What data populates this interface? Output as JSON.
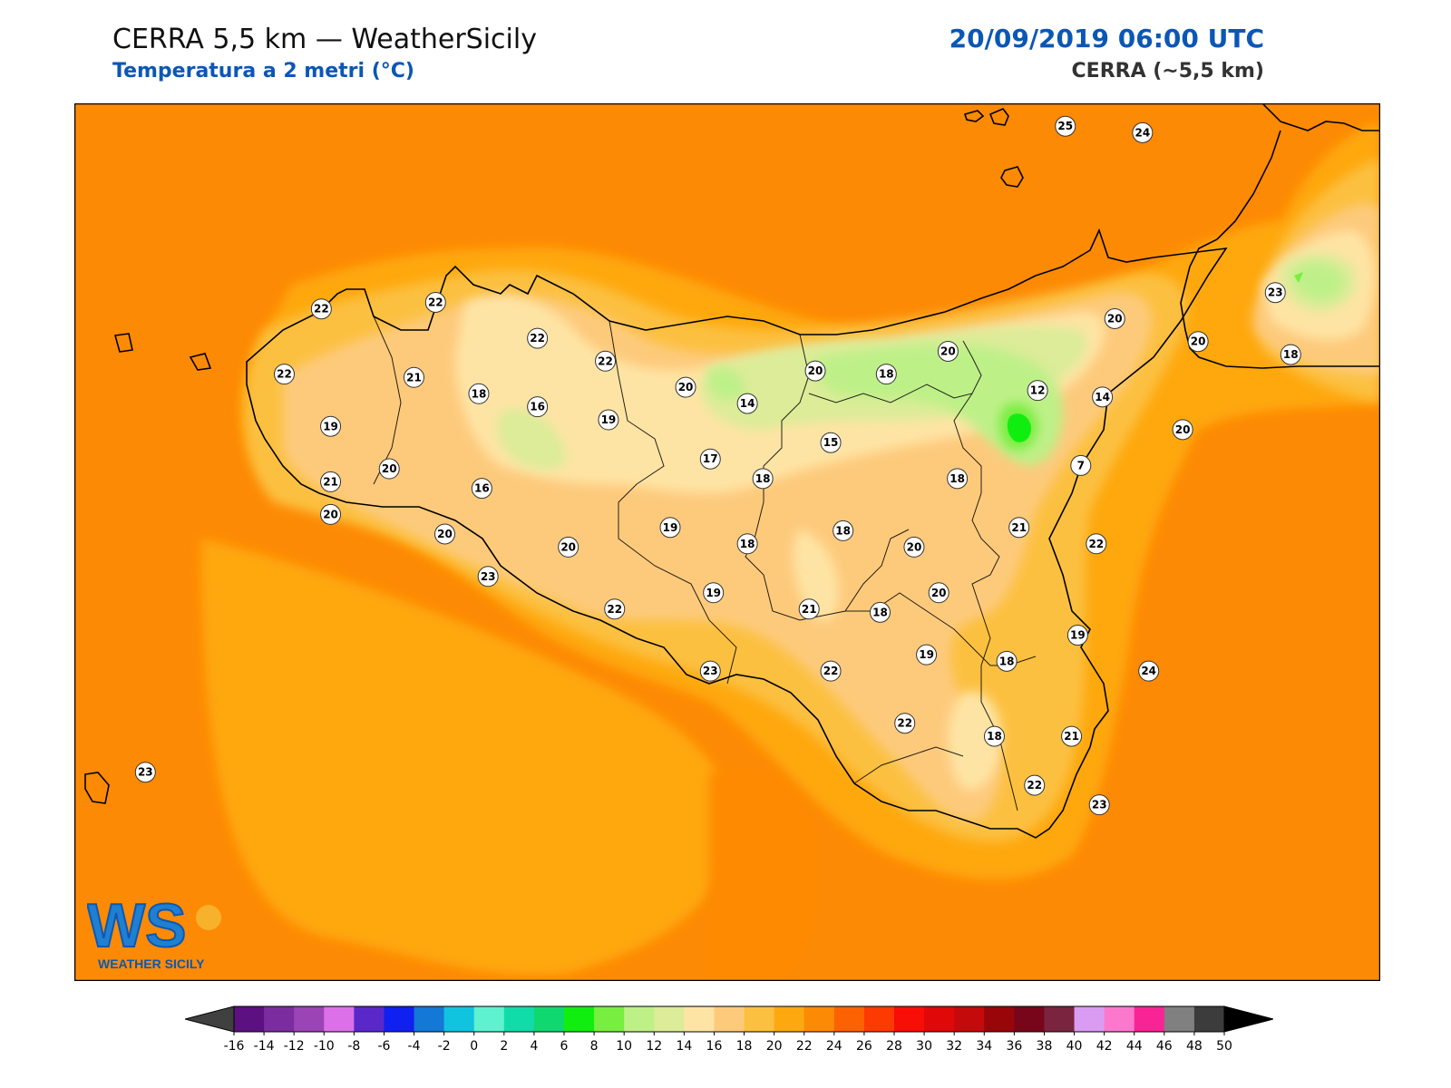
{
  "header": {
    "title": "CERRA 5,5 km — WeatherSicily",
    "subtitle": "Temperatura a 2 metri (°C)",
    "datetime": "20/09/2019 06:00 UTC",
    "model": "CERRA (~5,5 km)"
  },
  "logo": {
    "text": "WEATHER SICILY",
    "initials": "WS"
  },
  "colorbar": {
    "ticks": [
      "-16",
      "-14",
      "-12",
      "-10",
      "-8",
      "-6",
      "-4",
      "-2",
      "0",
      "2",
      "4",
      "6",
      "8",
      "10",
      "12",
      "14",
      "16",
      "18",
      "20",
      "22",
      "24",
      "26",
      "28",
      "30",
      "32",
      "34",
      "36",
      "38",
      "40",
      "42",
      "44",
      "46",
      "48",
      "50"
    ],
    "colors": [
      "#3a0a4f",
      "#5c1181",
      "#7b2d9f",
      "#9a44b6",
      "#dc70e8",
      "#5a28c8",
      "#1020f0",
      "#1478d6",
      "#10c4e0",
      "#5ef2d0",
      "#10dcaa",
      "#10d870",
      "#10ee10",
      "#78ee40",
      "#bef088",
      "#dcec98",
      "#fee4a4",
      "#fdca7c",
      "#fcc040",
      "#fea810",
      "#fd8a04",
      "#fc6202",
      "#fc3a02",
      "#f80e06",
      "#e00808",
      "#c40a0a",
      "#98060a",
      "#78061a",
      "#7a2440",
      "#da9cf2",
      "#fc78cc",
      "#f82496",
      "#808080",
      "#3c3c3c"
    ],
    "under_color": "#404040",
    "over_color": "#000000"
  },
  "stations": [
    {
      "v": "25",
      "lon": 14.96,
      "lat": 38.78
    },
    {
      "v": "24",
      "lon": 15.21,
      "lat": 38.76
    },
    {
      "v": "22",
      "lon": 12.55,
      "lat": 38.22
    },
    {
      "v": "22",
      "lon": 12.92,
      "lat": 38.24
    },
    {
      "v": "22",
      "lon": 13.25,
      "lat": 38.13
    },
    {
      "v": "22",
      "lon": 13.47,
      "lat": 38.06
    },
    {
      "v": "22",
      "lon": 12.43,
      "lat": 38.02
    },
    {
      "v": "21",
      "lon": 12.85,
      "lat": 38.01
    },
    {
      "v": "18",
      "lon": 13.06,
      "lat": 37.96
    },
    {
      "v": "16",
      "lon": 13.25,
      "lat": 37.92
    },
    {
      "v": "19",
      "lon": 13.48,
      "lat": 37.88
    },
    {
      "v": "20",
      "lon": 13.73,
      "lat": 37.98
    },
    {
      "v": "14",
      "lon": 13.93,
      "lat": 37.93
    },
    {
      "v": "20",
      "lon": 14.15,
      "lat": 38.03
    },
    {
      "v": "18",
      "lon": 14.38,
      "lat": 38.02
    },
    {
      "v": "20",
      "lon": 14.58,
      "lat": 38.09
    },
    {
      "v": "20",
      "lon": 15.12,
      "lat": 38.19
    },
    {
      "v": "20",
      "lon": 15.39,
      "lat": 38.12
    },
    {
      "v": "23",
      "lon": 15.64,
      "lat": 38.27
    },
    {
      "v": "18",
      "lon": 15.69,
      "lat": 38.08
    },
    {
      "v": "12",
      "lon": 14.87,
      "lat": 37.97
    },
    {
      "v": "14",
      "lon": 15.08,
      "lat": 37.95
    },
    {
      "v": "20",
      "lon": 15.34,
      "lat": 37.85
    },
    {
      "v": "7",
      "lon": 15.01,
      "lat": 37.74
    },
    {
      "v": "19",
      "lon": 12.58,
      "lat": 37.86
    },
    {
      "v": "20",
      "lon": 12.77,
      "lat": 37.73
    },
    {
      "v": "21",
      "lon": 12.58,
      "lat": 37.69
    },
    {
      "v": "20",
      "lon": 12.58,
      "lat": 37.59
    },
    {
      "v": "20",
      "lon": 12.95,
      "lat": 37.53
    },
    {
      "v": "16",
      "lon": 13.07,
      "lat": 37.67
    },
    {
      "v": "17",
      "lon": 13.81,
      "lat": 37.76
    },
    {
      "v": "15",
      "lon": 14.2,
      "lat": 37.81
    },
    {
      "v": "18",
      "lon": 13.98,
      "lat": 37.7
    },
    {
      "v": "18",
      "lon": 14.61,
      "lat": 37.7
    },
    {
      "v": "19",
      "lon": 13.68,
      "lat": 37.55
    },
    {
      "v": "18",
      "lon": 13.93,
      "lat": 37.5
    },
    {
      "v": "18",
      "lon": 14.24,
      "lat": 37.54
    },
    {
      "v": "20",
      "lon": 14.47,
      "lat": 37.49
    },
    {
      "v": "21",
      "lon": 14.81,
      "lat": 37.55
    },
    {
      "v": "22",
      "lon": 15.06,
      "lat": 37.5
    },
    {
      "v": "20",
      "lon": 13.35,
      "lat": 37.49
    },
    {
      "v": "23",
      "lon": 13.09,
      "lat": 37.4
    },
    {
      "v": "22",
      "lon": 13.5,
      "lat": 37.3
    },
    {
      "v": "19",
      "lon": 13.82,
      "lat": 37.35
    },
    {
      "v": "21",
      "lon": 14.13,
      "lat": 37.3
    },
    {
      "v": "18",
      "lon": 14.36,
      "lat": 37.29
    },
    {
      "v": "20",
      "lon": 14.55,
      "lat": 37.35
    },
    {
      "v": "19",
      "lon": 15.0,
      "lat": 37.22
    },
    {
      "v": "19",
      "lon": 14.51,
      "lat": 37.16
    },
    {
      "v": "18",
      "lon": 14.77,
      "lat": 37.14
    },
    {
      "v": "24",
      "lon": 15.23,
      "lat": 37.11
    },
    {
      "v": "23",
      "lon": 13.81,
      "lat": 37.11
    },
    {
      "v": "22",
      "lon": 14.2,
      "lat": 37.11
    },
    {
      "v": "22",
      "lon": 14.44,
      "lat": 36.95
    },
    {
      "v": "18",
      "lon": 14.73,
      "lat": 36.91
    },
    {
      "v": "21",
      "lon": 14.98,
      "lat": 36.91
    },
    {
      "v": "22",
      "lon": 14.86,
      "lat": 36.76
    },
    {
      "v": "23",
      "lon": 15.07,
      "lat": 36.7
    },
    {
      "v": "23",
      "lon": 11.98,
      "lat": 36.8
    }
  ]
}
